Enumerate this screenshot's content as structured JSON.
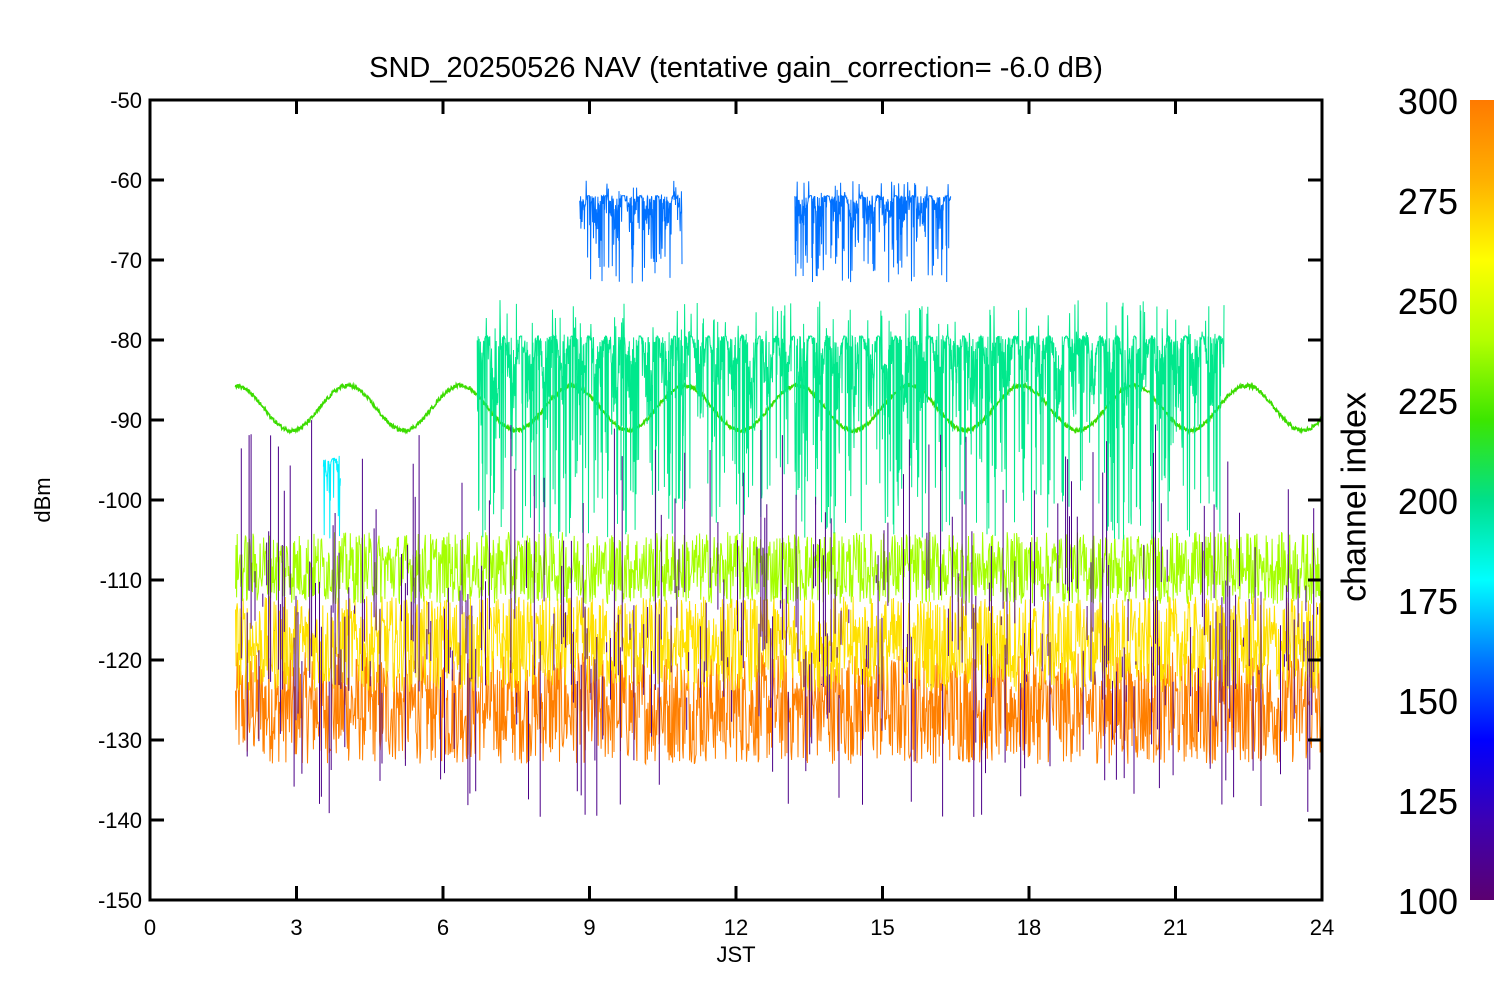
{
  "chart_data": {
    "type": "line",
    "title": "SND_20250526 NAV (tentative gain_correction= -6.0 dB)",
    "xlabel": "JST",
    "ylabel": "dBm",
    "xlim": [
      0,
      24
    ],
    "ylim": [
      -150,
      -50
    ],
    "xticks": [
      0,
      3,
      6,
      9,
      12,
      15,
      18,
      21,
      24
    ],
    "yticks": [
      -50,
      -60,
      -70,
      -80,
      -90,
      -100,
      -110,
      -120,
      -130,
      -140,
      -150
    ],
    "grid": false,
    "colorbar": {
      "label": "channel index",
      "range": [
        100,
        300
      ],
      "ticks": [
        300,
        275,
        250,
        225,
        200,
        175,
        150,
        125,
        100
      ],
      "colormap": "rainbow",
      "colors": [
        "#5b0070",
        "#3c00b4",
        "#0000ff",
        "#0078ff",
        "#00ffff",
        "#00e08a",
        "#3ce600",
        "#b4ff00",
        "#ffff00",
        "#ffb000",
        "#ff7a00"
      ]
    },
    "series": [
      {
        "channel": 290,
        "color": "#ff7f00",
        "kind": "noise-band",
        "x": [
          1.75,
          24
        ],
        "y_band": [
          -133,
          -119
        ]
      },
      {
        "channel": 270,
        "color": "#ffe000",
        "kind": "noise-band",
        "x": [
          1.75,
          24
        ],
        "y_band": [
          -124,
          -112
        ]
      },
      {
        "channel": 250,
        "color": "#a4ff00",
        "kind": "noise-band",
        "x": [
          1.75,
          24
        ],
        "y_band": [
          -113,
          -104
        ]
      },
      {
        "channel": 235,
        "color": "#3cdc00",
        "kind": "sinusoid",
        "x": [
          1.75,
          24
        ],
        "mean": -88.5,
        "amplitude": 2.8,
        "period_hours": 2.3
      },
      {
        "channel": 205,
        "color": "#00e88c",
        "kind": "bursts",
        "x": [
          6.7,
          22
        ],
        "y_range": [
          -105,
          -75
        ]
      },
      {
        "channel": 150,
        "color": "#0070ff",
        "kind": "bursts",
        "segments": [
          [
            8.8,
            10.9
          ],
          [
            13.2,
            16.4
          ]
        ],
        "y_range": [
          -73,
          -60
        ]
      },
      {
        "channel": 180,
        "color": "#00f0ff",
        "kind": "burst",
        "x": [
          3.55,
          3.9
        ],
        "y_range": [
          -105,
          -93
        ]
      },
      {
        "channel": 115,
        "color": "#4b0088",
        "kind": "spikes",
        "x": [
          1.75,
          24
        ],
        "y_range": [
          -140,
          -90
        ]
      }
    ]
  }
}
